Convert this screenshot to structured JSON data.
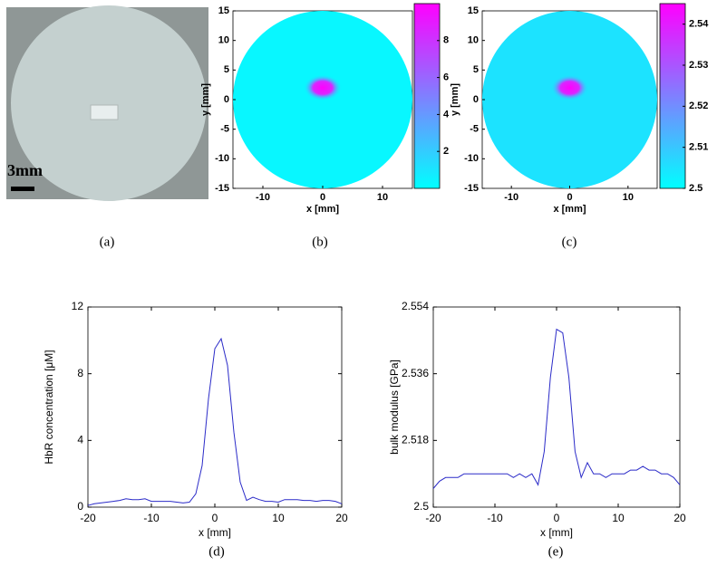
{
  "chart_data": [
    {
      "type": "image",
      "scale_label": "3mm",
      "caption": "(a)"
    },
    {
      "type": "heatmap",
      "caption": "(b)",
      "xlabel": "x [mm]",
      "ylabel": "y [mm]",
      "xlim": [
        -15,
        15
      ],
      "ylim": [
        -15,
        15
      ],
      "xticks": [
        -10,
        0,
        10
      ],
      "yticks": [
        -15,
        -10,
        -5,
        0,
        5,
        10,
        15
      ],
      "clim": [
        0,
        10
      ],
      "cticks": [
        2,
        4,
        6,
        8
      ],
      "background": 0.3,
      "peak": 10,
      "peak_x": 0,
      "peak_y": 2
    },
    {
      "type": "heatmap",
      "caption": "(c)",
      "xlabel": "x [mm]",
      "ylabel": "y [mm]",
      "xlim": [
        -15,
        15
      ],
      "ylim": [
        -15,
        15
      ],
      "xticks": [
        -10,
        0,
        10
      ],
      "yticks": [
        -15,
        -10,
        -5,
        0,
        5,
        10,
        15
      ],
      "clim": [
        2.5,
        2.545
      ],
      "cticks": [
        2.5,
        2.51,
        2.52,
        2.53,
        2.54
      ],
      "background": 2.505,
      "peak": 2.545,
      "peak_x": 0,
      "peak_y": 2
    },
    {
      "type": "line",
      "caption": "(d)",
      "xlabel": "x [mm]",
      "ylabel": "HbR concentration [μM]",
      "color": "#2b2bc8",
      "xlim": [
        -20,
        20
      ],
      "ylim": [
        0,
        12
      ],
      "xticks": [
        -20,
        -10,
        0,
        10,
        20
      ],
      "yticks": [
        0,
        4,
        8,
        12
      ],
      "x": [
        -20,
        -19,
        -18,
        -17,
        -16,
        -15,
        -14,
        -13,
        -12,
        -11,
        -10,
        -9,
        -8,
        -7,
        -6,
        -5,
        -4,
        -3,
        -2,
        -1,
        0,
        1,
        2,
        3,
        4,
        5,
        6,
        7,
        8,
        9,
        10,
        11,
        12,
        13,
        14,
        15,
        16,
        17,
        18,
        19,
        20
      ],
      "values": [
        0.1,
        0.2,
        0.25,
        0.3,
        0.35,
        0.4,
        0.5,
        0.45,
        0.45,
        0.5,
        0.35,
        0.35,
        0.35,
        0.35,
        0.3,
        0.25,
        0.3,
        0.8,
        2.5,
        6.5,
        9.5,
        10.1,
        8.5,
        4.5,
        1.5,
        0.4,
        0.6,
        0.45,
        0.35,
        0.35,
        0.3,
        0.45,
        0.45,
        0.45,
        0.4,
        0.4,
        0.35,
        0.4,
        0.4,
        0.35,
        0.2
      ]
    },
    {
      "type": "line",
      "caption": "(e)",
      "xlabel": "x [mm]",
      "ylabel": "bulk modulus [GPa]",
      "color": "#2b2bc8",
      "xlim": [
        -20,
        20
      ],
      "ylim": [
        2.5,
        2.554
      ],
      "xticks": [
        -20,
        -10,
        0,
        10,
        20
      ],
      "yticks": [
        2.5,
        2.518,
        2.536,
        2.554
      ],
      "x": [
        -20,
        -19,
        -18,
        -17,
        -16,
        -15,
        -14,
        -13,
        -12,
        -11,
        -10,
        -9,
        -8,
        -7,
        -6,
        -5,
        -4,
        -3,
        -2,
        -1,
        0,
        1,
        2,
        3,
        4,
        5,
        6,
        7,
        8,
        9,
        10,
        11,
        12,
        13,
        14,
        15,
        16,
        17,
        18,
        19,
        20
      ],
      "values": [
        2.505,
        2.507,
        2.508,
        2.508,
        2.508,
        2.509,
        2.509,
        2.509,
        2.509,
        2.509,
        2.509,
        2.509,
        2.509,
        2.508,
        2.509,
        2.508,
        2.509,
        2.506,
        2.515,
        2.535,
        2.548,
        2.547,
        2.535,
        2.515,
        2.508,
        2.512,
        2.509,
        2.509,
        2.508,
        2.509,
        2.509,
        2.509,
        2.51,
        2.51,
        2.511,
        2.51,
        2.51,
        2.509,
        2.509,
        2.508,
        2.506
      ]
    }
  ]
}
